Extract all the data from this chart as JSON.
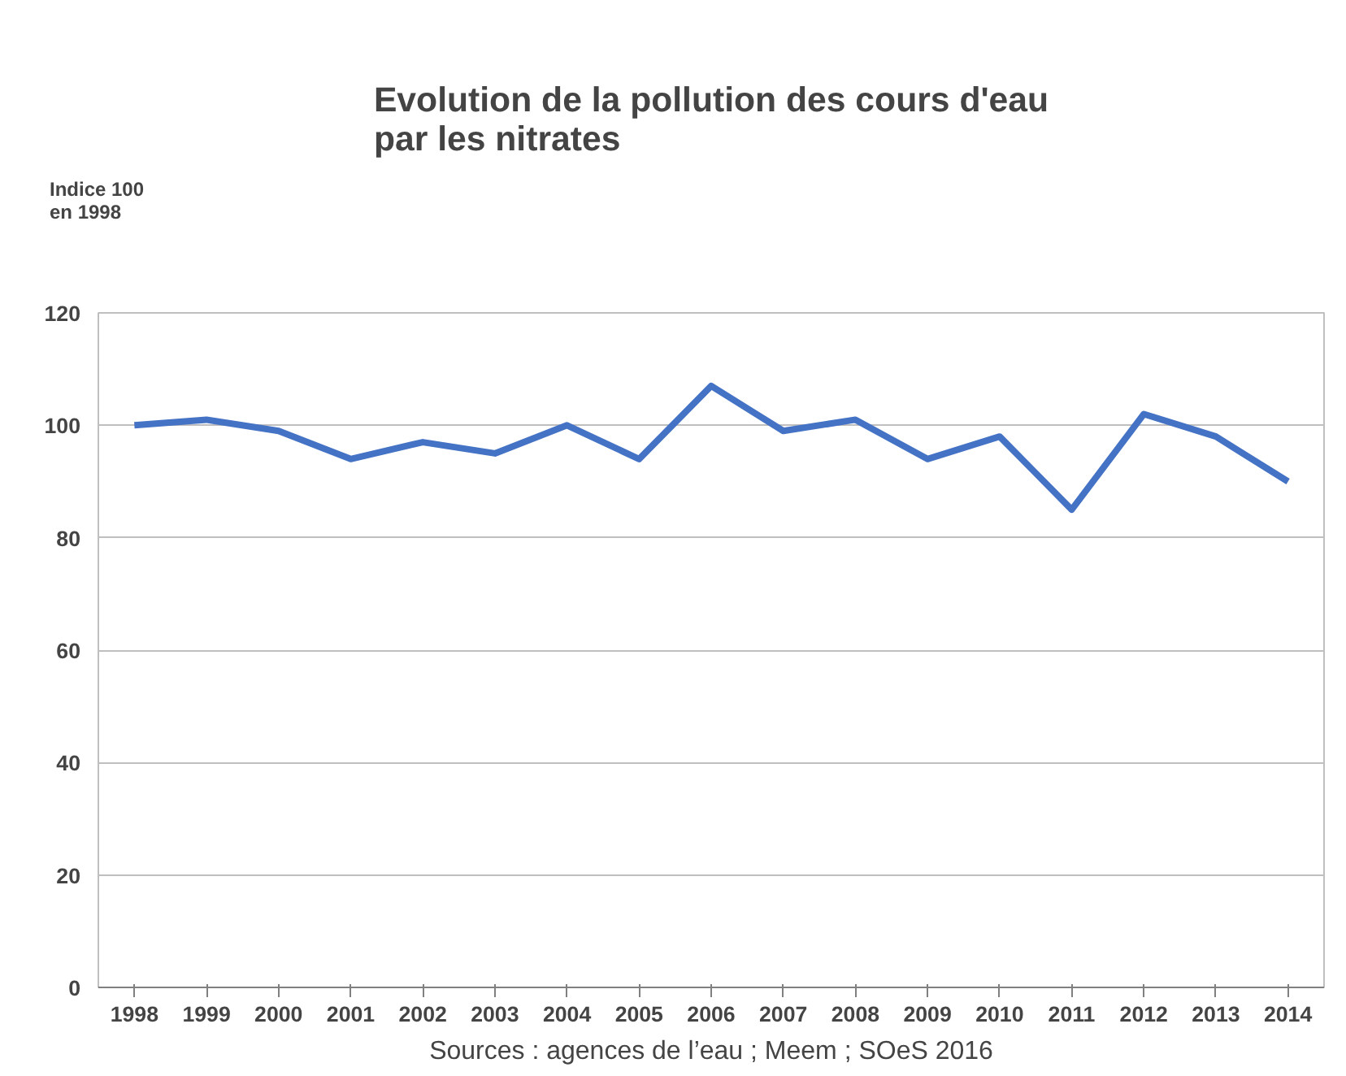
{
  "chart_data": {
    "type": "line",
    "title": "Evolution de la pollution des cours d'eau\npar les nitrates",
    "ylabel": "Indice 100\nen 1998",
    "categories": [
      "1998",
      "1999",
      "2000",
      "2001",
      "2002",
      "2003",
      "2004",
      "2005",
      "2006",
      "2007",
      "2008",
      "2009",
      "2010",
      "2011",
      "2012",
      "2013",
      "2014"
    ],
    "series": [
      {
        "color": "#4472c4",
        "values": [
          100,
          101,
          99,
          94,
          97,
          95,
          100,
          94,
          107,
          99,
          101,
          94,
          98,
          85,
          102,
          98,
          90
        ]
      }
    ],
    "ylim": [
      0,
      120
    ],
    "yticks": [
      0,
      20,
      40,
      60,
      80,
      100,
      120
    ],
    "grid": "y",
    "marker": "none",
    "line_style": "solid",
    "annotations": [
      "Sources : agences de l’eau ; Meem ; SOeS 2016"
    ]
  }
}
